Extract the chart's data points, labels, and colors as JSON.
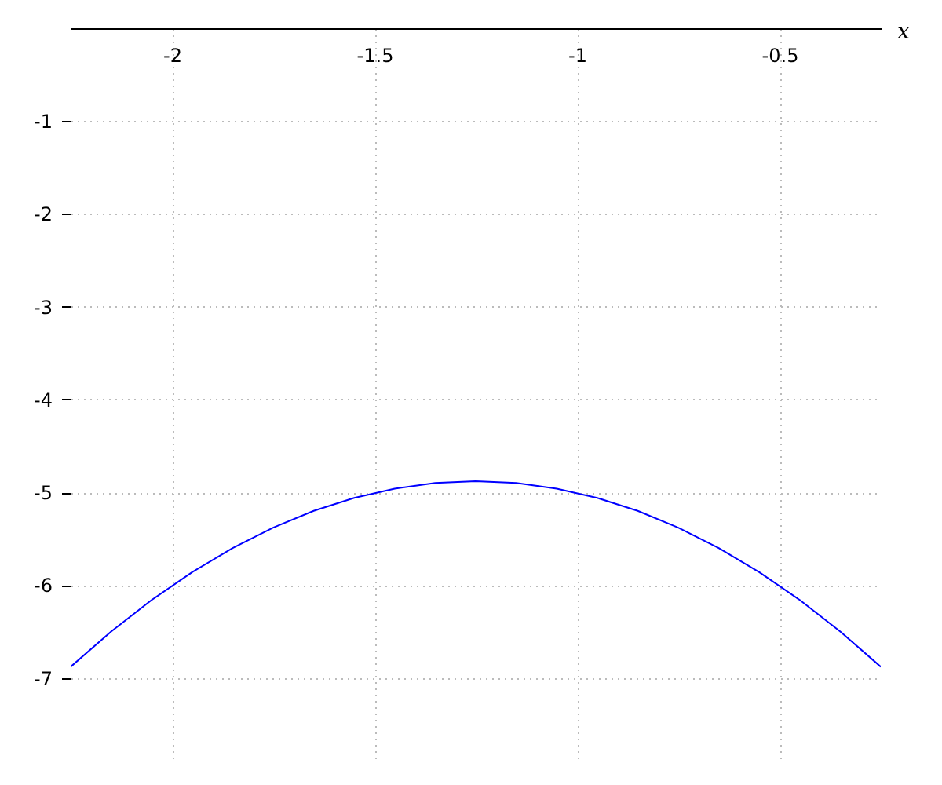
{
  "chart_data": {
    "type": "line",
    "xlabel": "x",
    "x": [
      -2.25,
      -2.15,
      -2.05,
      -1.95,
      -1.85,
      -1.75,
      -1.65,
      -1.55,
      -1.45,
      -1.35,
      -1.25,
      -1.15,
      -1.05,
      -0.95,
      -0.85,
      -0.75,
      -0.65,
      -0.55,
      -0.45,
      -0.35,
      -0.25
    ],
    "series": [
      {
        "color": "#0000ff",
        "values": [
          -6.88,
          -6.5,
          -6.16,
          -5.86,
          -5.6,
          -5.38,
          -5.2,
          -5.06,
          -4.96,
          -4.9,
          -4.88,
          -4.9,
          -4.96,
          -5.06,
          -5.2,
          -5.38,
          -5.6,
          -5.86,
          -6.16,
          -6.5,
          -6.88
        ]
      }
    ],
    "xlim": [
      -2.25,
      -0.25
    ],
    "xticks": [
      -2,
      -1.5,
      -1,
      -0.5
    ],
    "ylim": [
      -7.9,
      0
    ],
    "yticks": [
      -1,
      -2,
      -3,
      -4,
      -5,
      -6,
      -7
    ],
    "grid": true,
    "legend": false,
    "marker": "none",
    "line_style": "solid"
  }
}
